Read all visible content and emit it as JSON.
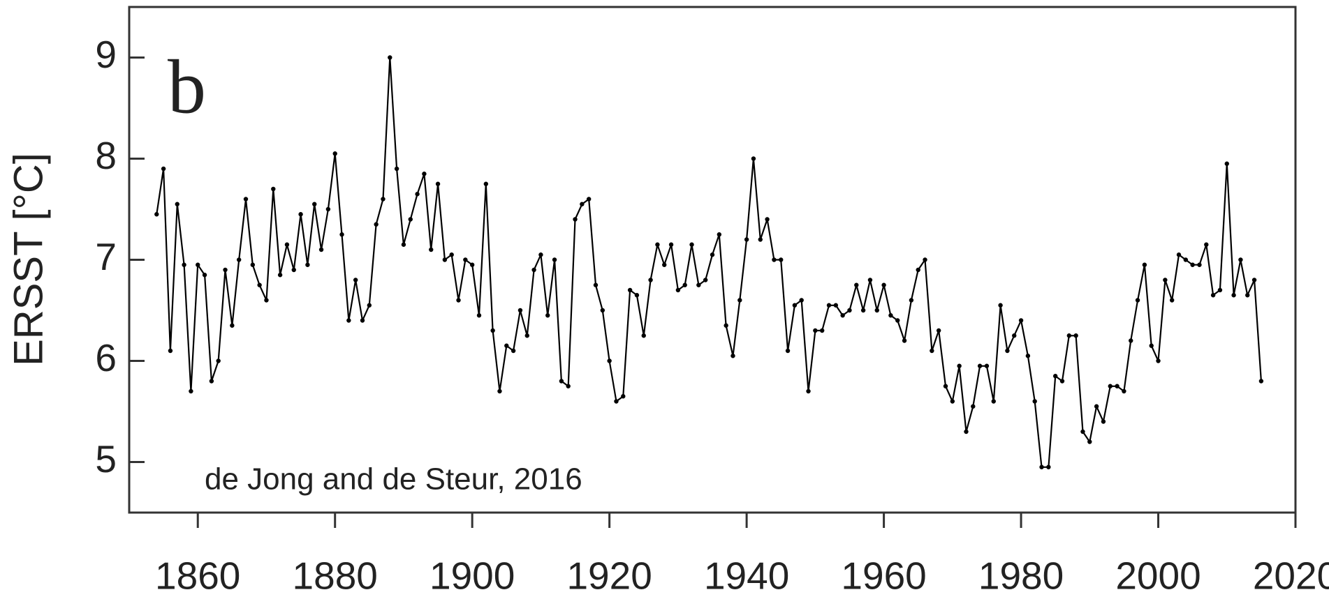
{
  "chart_data": {
    "type": "line",
    "panel_label": "b",
    "ylabel": "ERSST [°C]",
    "annotation": "de Jong and de Steur, 2016",
    "color": "#000000",
    "xlim": [
      1850,
      2020
    ],
    "xticks": [
      1860,
      1880,
      1900,
      1920,
      1940,
      1960,
      1980,
      2000,
      2020
    ],
    "ylim": [
      4.5,
      9.5
    ],
    "yticks": [
      5,
      6,
      7,
      8,
      9
    ],
    "x": [
      1854,
      1855,
      1856,
      1857,
      1858,
      1859,
      1860,
      1861,
      1862,
      1863,
      1864,
      1865,
      1866,
      1867,
      1868,
      1869,
      1870,
      1871,
      1872,
      1873,
      1874,
      1875,
      1876,
      1877,
      1878,
      1879,
      1880,
      1881,
      1882,
      1883,
      1884,
      1885,
      1886,
      1887,
      1888,
      1889,
      1890,
      1891,
      1892,
      1893,
      1894,
      1895,
      1896,
      1897,
      1898,
      1899,
      1900,
      1901,
      1902,
      1903,
      1904,
      1905,
      1906,
      1907,
      1908,
      1909,
      1910,
      1911,
      1912,
      1913,
      1914,
      1915,
      1916,
      1917,
      1918,
      1919,
      1920,
      1921,
      1922,
      1923,
      1924,
      1925,
      1926,
      1927,
      1928,
      1929,
      1930,
      1931,
      1932,
      1933,
      1934,
      1935,
      1936,
      1937,
      1938,
      1939,
      1940,
      1941,
      1942,
      1943,
      1944,
      1945,
      1946,
      1947,
      1948,
      1949,
      1950,
      1951,
      1952,
      1953,
      1954,
      1955,
      1956,
      1957,
      1958,
      1959,
      1960,
      1961,
      1962,
      1963,
      1964,
      1965,
      1966,
      1967,
      1968,
      1969,
      1970,
      1971,
      1972,
      1973,
      1974,
      1975,
      1976,
      1977,
      1978,
      1979,
      1980,
      1981,
      1982,
      1983,
      1984,
      1985,
      1986,
      1987,
      1988,
      1989,
      1990,
      1991,
      1992,
      1993,
      1994,
      1995,
      1996,
      1997,
      1998,
      1999,
      2000,
      2001,
      2002,
      2003,
      2004,
      2005,
      2006,
      2007,
      2008,
      2009,
      2010,
      2011,
      2012,
      2013,
      2014,
      2015
    ],
    "values": [
      7.45,
      7.9,
      6.1,
      7.55,
      6.95,
      5.7,
      6.95,
      6.85,
      5.8,
      6.0,
      6.9,
      6.35,
      7.0,
      7.6,
      6.95,
      6.75,
      6.6,
      7.7,
      6.85,
      7.15,
      6.9,
      7.45,
      6.95,
      7.55,
      7.1,
      7.5,
      8.05,
      7.25,
      6.4,
      6.8,
      6.4,
      6.55,
      7.35,
      7.6,
      9.0,
      7.9,
      7.15,
      7.4,
      7.65,
      7.85,
      7.1,
      7.75,
      7.0,
      7.05,
      6.6,
      7.0,
      6.95,
      6.45,
      7.75,
      6.3,
      5.7,
      6.15,
      6.1,
      6.5,
      6.25,
      6.9,
      7.05,
      6.45,
      7.0,
      5.8,
      5.75,
      7.4,
      7.55,
      7.6,
      6.75,
      6.5,
      6.0,
      5.6,
      5.65,
      6.7,
      6.65,
      6.25,
      6.8,
      7.15,
      6.95,
      7.15,
      6.7,
      6.75,
      7.15,
      6.75,
      6.8,
      7.05,
      7.25,
      6.35,
      6.05,
      6.6,
      7.2,
      8.0,
      7.2,
      7.4,
      7.0,
      7.0,
      6.1,
      6.55,
      6.6,
      5.7,
      6.3,
      6.3,
      6.55,
      6.55,
      6.45,
      6.5,
      6.75,
      6.5,
      6.8,
      6.5,
      6.75,
      6.45,
      6.4,
      6.2,
      6.6,
      6.9,
      7.0,
      6.1,
      6.3,
      5.75,
      5.6,
      5.95,
      5.3,
      5.55,
      5.95,
      5.95,
      5.6,
      6.55,
      6.1,
      6.25,
      6.4,
      6.05,
      5.6,
      4.95,
      4.95,
      5.85,
      5.8,
      6.25,
      6.25,
      5.3,
      5.2,
      5.55,
      5.4,
      5.75,
      5.75,
      5.7,
      6.2,
      6.6,
      6.95,
      6.15,
      6.0,
      6.8,
      6.6,
      7.05,
      7.0,
      6.95,
      6.95,
      7.15,
      6.65,
      6.7,
      7.95,
      6.65,
      7.0,
      6.65,
      6.8,
      5.8
    ]
  }
}
